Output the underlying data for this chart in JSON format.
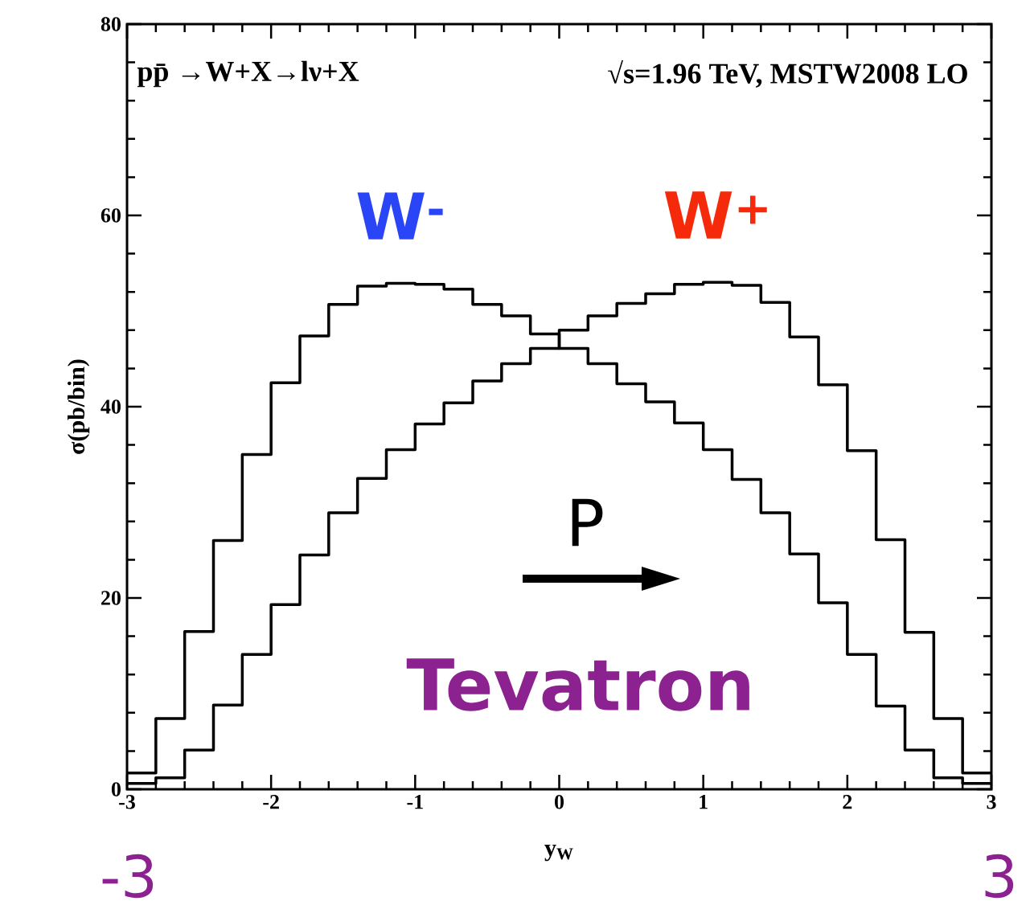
{
  "chart_data": {
    "type": "histogram",
    "annotations": [
      "pp̄ →W+X→lν+X",
      "√s=1.96 TeV, MSTW2008 LO",
      "P",
      "Tevatron",
      "-3",
      "3"
    ],
    "xlabel": "y$_{W}$",
    "ylabel": "σ(pb/bin)",
    "bins": [
      -3.0,
      -2.8,
      -2.6,
      -2.4,
      -2.2,
      -2.0,
      -1.8,
      -1.6,
      -1.4,
      -1.2,
      -1.0,
      -0.8,
      -0.6,
      -0.4,
      -0.2,
      0.0,
      0.2,
      0.4,
      0.6,
      0.8,
      1.0,
      1.2,
      1.4,
      1.6,
      1.8,
      2.0,
      2.2,
      2.4,
      2.6,
      2.8,
      3.0
    ],
    "series": [
      {
        "name": "W$^{-}$",
        "color": "#000000",
        "values": [
          1.7,
          7.4,
          16.5,
          26.0,
          35.0,
          42.5,
          47.4,
          50.7,
          52.6,
          52.9,
          52.8,
          52.3,
          50.7,
          49.5,
          47.6,
          46.1,
          44.5,
          42.4,
          40.5,
          38.3,
          35.5,
          32.4,
          28.9,
          24.6,
          19.5,
          14.1,
          8.7,
          4.1,
          1.2,
          0.6
        ]
      },
      {
        "name": "W$^{+}$",
        "color": "#000000",
        "values": [
          0.6,
          1.2,
          4.1,
          8.8,
          14.1,
          19.3,
          24.5,
          28.9,
          32.5,
          35.5,
          38.2,
          40.4,
          42.7,
          44.5,
          46.1,
          48.0,
          49.5,
          50.8,
          51.8,
          52.8,
          53.0,
          52.7,
          50.9,
          47.3,
          42.3,
          35.4,
          26.1,
          16.4,
          7.4,
          1.7
        ]
      }
    ],
    "xlim": [
      -3,
      3
    ],
    "ylim": [
      0,
      80
    ],
    "xticks": [
      -3,
      -2,
      -1,
      0,
      1,
      2,
      3
    ],
    "yticks": [
      0,
      20,
      40,
      60,
      80
    ],
    "legend": false,
    "grid": false
  }
}
